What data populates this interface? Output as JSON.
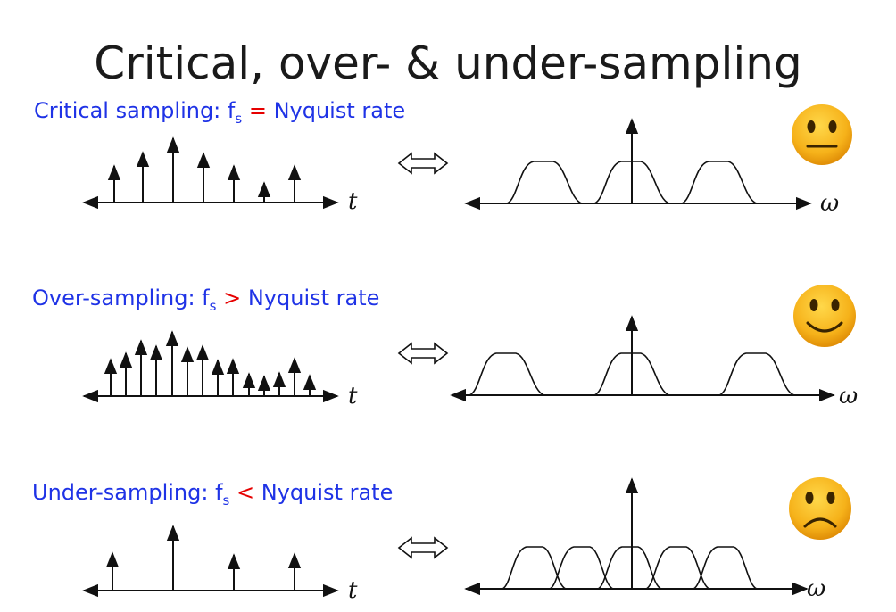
{
  "title": "Critical, over- & under-sampling",
  "rows": [
    {
      "label_prefix": "Critical sampling: f",
      "label_sub": "s",
      "relation": "=",
      "label_suffix": "Nyquist rate",
      "time_axis": "t",
      "freq_axis": "ω",
      "face": "neutral-face-emoji"
    },
    {
      "label_prefix": "Over-sampling: f",
      "label_sub": "s",
      "relation": ">",
      "label_suffix": "Nyquist rate",
      "time_axis": "t",
      "freq_axis": "ω",
      "face": "smiling-face-emoji"
    },
    {
      "label_prefix": "Under-sampling: f",
      "label_sub": "s",
      "relation": "<",
      "label_suffix": "Nyquist rate",
      "time_axis": "t",
      "freq_axis": "ω",
      "face": "frowning-face-emoji"
    }
  ],
  "colors": {
    "label": "#1f33e6",
    "relation": "#e60000",
    "face": "#f2a20a"
  }
}
